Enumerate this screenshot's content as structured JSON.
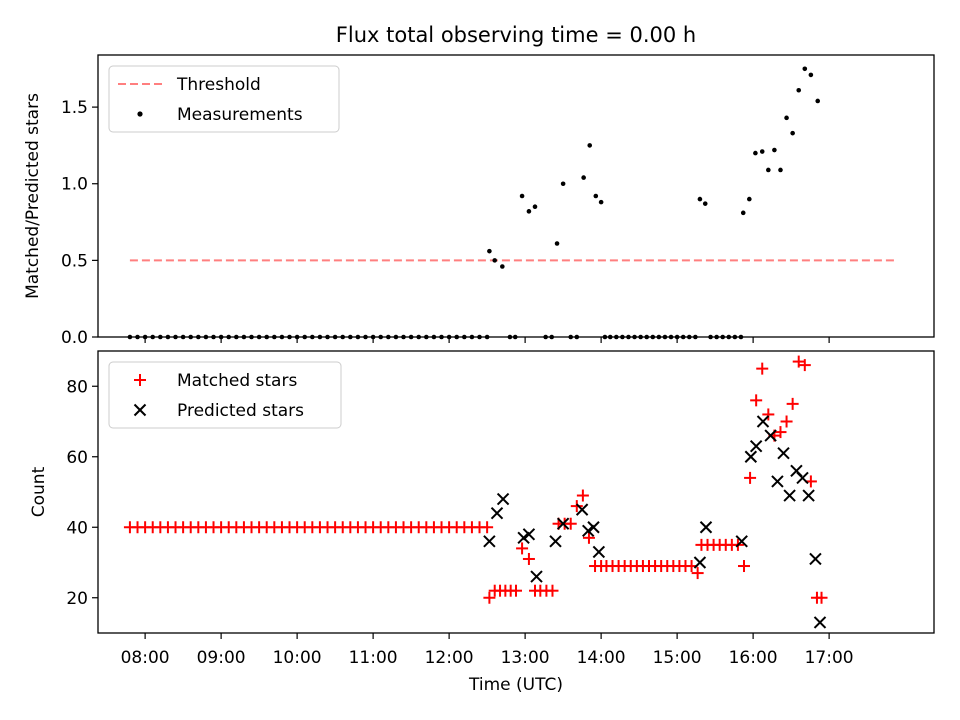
{
  "chart_data": [
    {
      "type": "scatter",
      "title": "Flux total observing time = 0.00 h",
      "xlabel": "",
      "ylabel": "Matched/Predicted stars",
      "xlim": [
        7.38,
        18.38
      ],
      "ylim": [
        0.0,
        1.84
      ],
      "yticks": [
        0.0,
        0.5,
        1.0,
        1.5
      ],
      "ytick_labels": [
        "0.0",
        "0.5",
        "1.0",
        "1.5"
      ],
      "legend": {
        "placement": "top-left",
        "entries": [
          {
            "label": "Threshold",
            "style": "dashed-line",
            "color": "#ff7f7f"
          },
          {
            "label": "Measurements",
            "style": "dot",
            "color": "#000000"
          }
        ]
      },
      "series": [
        {
          "name": "Threshold",
          "kind": "line",
          "color": "#ff7f7f",
          "x": [
            7.8,
            17.9
          ],
          "y": [
            0.5,
            0.5
          ]
        },
        {
          "name": "Measurements",
          "kind": "scatter",
          "color": "#000000",
          "zero_points": {
            "x_start": 7.8,
            "step": 0.1,
            "count": 48
          },
          "x": [
            12.53,
            12.6,
            12.7,
            12.8,
            12.87,
            12.96,
            13.05,
            13.13,
            13.27,
            13.35,
            13.42,
            13.5,
            13.6,
            13.68,
            13.77,
            13.85,
            13.93,
            14.0,
            14.05,
            14.12,
            14.2,
            14.28,
            14.36,
            14.44,
            14.52,
            14.6,
            14.68,
            14.76,
            14.84,
            14.92,
            15.0,
            15.08,
            15.16,
            15.24,
            15.3,
            15.37,
            15.44,
            15.52,
            15.6,
            15.68,
            15.76,
            15.84,
            15.87,
            15.95,
            16.03,
            16.12,
            16.2,
            16.28,
            16.36,
            16.44,
            16.52,
            16.6,
            16.68,
            16.76,
            16.85
          ],
          "y": [
            0.56,
            0.5,
            0.46,
            0.0,
            0.0,
            0.92,
            0.82,
            0.85,
            0.0,
            0.0,
            0.61,
            1.0,
            0.0,
            0.0,
            1.04,
            1.25,
            0.92,
            0.88,
            0.0,
            0.0,
            0.0,
            0.0,
            0.0,
            0.0,
            0.0,
            0.0,
            0.0,
            0.0,
            0.0,
            0.0,
            0.0,
            0.0,
            0.0,
            0.0,
            0.9,
            0.87,
            0.0,
            0.0,
            0.0,
            0.0,
            0.0,
            0.0,
            0.81,
            0.9,
            1.2,
            1.21,
            1.09,
            1.22,
            1.09,
            1.43,
            1.33,
            1.61,
            1.75,
            1.71,
            1.54
          ]
        }
      ]
    },
    {
      "type": "scatter",
      "title": "",
      "xlabel": "Time (UTC)",
      "ylabel": "Count",
      "xlim": [
        7.38,
        18.38
      ],
      "ylim": [
        10,
        90
      ],
      "yticks": [
        20,
        40,
        60,
        80
      ],
      "ytick_labels": [
        "20",
        "40",
        "60",
        "80"
      ],
      "xticks": [
        8,
        9,
        10,
        11,
        12,
        13,
        14,
        15,
        16,
        17
      ],
      "xtick_labels": [
        "08:00",
        "09:00",
        "10:00",
        "11:00",
        "12:00",
        "13:00",
        "14:00",
        "15:00",
        "16:00",
        "17:00"
      ],
      "legend": {
        "placement": "top-left",
        "entries": [
          {
            "label": "Matched stars",
            "marker": "+",
            "color": "#ff0000"
          },
          {
            "label": "Predicted stars",
            "marker": "x",
            "color": "#000000"
          }
        ]
      },
      "series": [
        {
          "name": "Matched stars",
          "marker": "+",
          "color": "#ff0000",
          "constant_run": {
            "x_start": 7.8,
            "step": 0.1,
            "count": 48,
            "y": 40
          },
          "x": [
            12.53,
            12.6,
            12.67,
            12.74,
            12.81,
            12.88,
            12.96,
            13.05,
            13.13,
            13.2,
            13.28,
            13.36,
            13.44,
            13.52,
            13.6,
            13.68,
            13.76,
            13.84,
            13.92,
            14.0,
            14.07,
            14.15,
            14.23,
            14.31,
            14.39,
            14.47,
            14.55,
            14.63,
            14.71,
            14.79,
            14.87,
            14.95,
            15.03,
            15.11,
            15.19,
            15.27,
            15.32,
            15.4,
            15.48,
            15.56,
            15.64,
            15.72,
            15.8,
            15.88,
            15.96,
            16.04,
            16.12,
            16.2,
            16.28,
            16.36,
            16.44,
            16.52,
            16.6,
            16.68,
            16.76,
            16.84,
            16.9
          ],
          "y": [
            20,
            22,
            22,
            22,
            22,
            22,
            34,
            31,
            22,
            22,
            22,
            22,
            41,
            41,
            41,
            46,
            49,
            37,
            29,
            29,
            29,
            29,
            29,
            29,
            29,
            29,
            29,
            29,
            29,
            29,
            29,
            29,
            29,
            29,
            29,
            27,
            35,
            35,
            35,
            35,
            35,
            35,
            35,
            29,
            54,
            76,
            85,
            72,
            66,
            67,
            70,
            75,
            87,
            86,
            53,
            20,
            20
          ]
        },
        {
          "name": "Predicted stars",
          "marker": "x",
          "color": "#000000",
          "x": [
            12.53,
            12.63,
            12.71,
            12.98,
            13.05,
            13.15,
            13.4,
            13.5,
            13.75,
            13.83,
            13.9,
            13.97,
            15.3,
            15.38,
            15.85,
            15.97,
            16.04,
            16.13,
            16.23,
            16.32,
            16.4,
            16.48,
            16.57,
            16.65,
            16.73,
            16.82,
            16.88
          ],
          "y": [
            36,
            44,
            48,
            37,
            38,
            26,
            36,
            41,
            45,
            39,
            40,
            33,
            30,
            40,
            36,
            60,
            63,
            70,
            66,
            53,
            61,
            49,
            56,
            54,
            49,
            31,
            13
          ]
        }
      ]
    }
  ]
}
